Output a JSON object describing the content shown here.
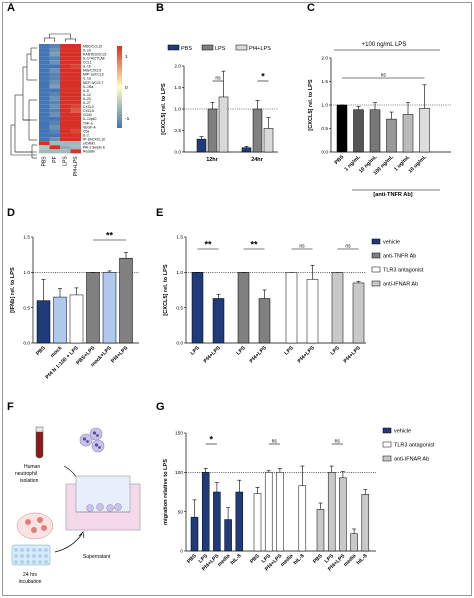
{
  "panel_letters": [
    "A",
    "B",
    "C",
    "D",
    "E",
    "F",
    "G"
  ],
  "chart_data": [
    {
      "panel": "A",
      "type": "heatmap",
      "columns": [
        "PBS",
        "PF",
        "LPS",
        "Pf4+LPS"
      ],
      "rows": [
        "MDC/CCL22",
        "IL-10",
        "RANTES/CCL5",
        "IL-17A/CTLA8",
        "CCL1",
        "IL-1b",
        "MIG/CXCL9",
        "MIP-1a/CCL3",
        "IL-1a",
        "MCP-3/CCL7",
        "IL-1Ra",
        "IL-6",
        "IL-12",
        "IL-23",
        "IL-27",
        "CXCL2",
        "CXCL5",
        "CD40",
        "IL-12p40",
        "TNF-a",
        "VEGF-A",
        "C5a",
        "IL-2",
        "IP-10/CXCL10",
        "sICAM1",
        "PAI-1 Serpin E",
        "Resistin"
      ],
      "values": [
        [
          -1.2,
          -0.9,
          1.4,
          1.1
        ],
        [
          -1.1,
          -0.8,
          1.4,
          1.0
        ],
        [
          -1.2,
          -0.7,
          1.3,
          1.1
        ],
        [
          -1.0,
          -0.9,
          1.3,
          1.0
        ],
        [
          -1.1,
          -0.8,
          1.2,
          1.1
        ],
        [
          -1.0,
          -1.0,
          1.4,
          0.9
        ],
        [
          -1.2,
          -0.8,
          1.2,
          1.2
        ],
        [
          -1.1,
          -0.9,
          1.3,
          1.0
        ],
        [
          -1.0,
          -0.9,
          1.4,
          1.0
        ],
        [
          -1.1,
          -0.8,
          1.2,
          1.1
        ],
        [
          -1.2,
          -0.7,
          1.3,
          1.0
        ],
        [
          -1.0,
          -1.0,
          1.3,
          1.1
        ],
        [
          -1.1,
          -0.9,
          1.2,
          1.0
        ],
        [
          -1.0,
          -0.8,
          1.3,
          1.1
        ],
        [
          -1.1,
          -0.9,
          1.2,
          1.0
        ],
        [
          -1.2,
          -0.8,
          1.3,
          0.9
        ],
        [
          -1.0,
          -0.9,
          1.4,
          0.8
        ],
        [
          -1.1,
          -0.8,
          1.2,
          1.0
        ],
        [
          -1.0,
          -1.0,
          1.3,
          1.1
        ],
        [
          -1.1,
          -0.9,
          1.4,
          1.0
        ],
        [
          -1.0,
          -0.8,
          1.1,
          1.0
        ],
        [
          -1.1,
          -0.9,
          1.2,
          0.9
        ],
        [
          -1.0,
          -1.0,
          1.3,
          1.1
        ],
        [
          -1.1,
          -0.8,
          1.3,
          1.0
        ],
        [
          1.5,
          -0.5,
          -0.5,
          -0.5
        ],
        [
          -0.4,
          1.5,
          -0.6,
          -0.5
        ],
        [
          -0.5,
          -0.5,
          -0.5,
          1.5
        ]
      ],
      "colorbar": {
        "min": -1,
        "max": 1,
        "ticks": [
          "1",
          "0",
          "-1"
        ],
        "colors": [
          "#4575b4",
          "#ffffbf",
          "#d73027"
        ]
      }
    },
    {
      "panel": "B",
      "type": "bar",
      "ylabel": "[CXCL5] rel. to LPS",
      "ylim": [
        0,
        2.0
      ],
      "yticks": [
        "0.0",
        "0.5",
        "1.0",
        "1.5",
        "2.0"
      ],
      "reference_line": 1.0,
      "legend": [
        {
          "label": "PBS",
          "color": "#1f3b7a"
        },
        {
          "label": "LPS",
          "color": "#808080"
        },
        {
          "label": "Pf4+LPS",
          "color": "#d9d9d9"
        }
      ],
      "groups": [
        "12hr",
        "24hr"
      ],
      "series": [
        {
          "name": "PBS",
          "color": "#1f3b7a",
          "values": [
            0.3,
            0.1
          ],
          "errors": [
            0.06,
            0.03
          ]
        },
        {
          "name": "LPS",
          "color": "#808080",
          "values": [
            1.0,
            1.0
          ],
          "errors": [
            0.15,
            0.2
          ]
        },
        {
          "name": "Pf4+LPS",
          "color": "#d9d9d9",
          "values": [
            1.28,
            0.55
          ],
          "errors": [
            0.6,
            0.25
          ]
        }
      ],
      "annotations": [
        "ns",
        "*"
      ]
    },
    {
      "panel": "C",
      "type": "bar",
      "ylabel": "[CXCL5] rel. to LPS",
      "ylim": [
        0,
        2.0
      ],
      "yticks": [
        "0.0",
        "0.5",
        "1.0",
        "1.5",
        "2.0"
      ],
      "reference_line": 1.0,
      "header": "+100 ng/mL LPS",
      "xlabel": "[anti-TNFR Ab]",
      "categories": [
        "PBS",
        "1 ng/mL",
        "10 ng/mL",
        "100 ng/mL",
        "1 ug/mL",
        "10 ug/mL"
      ],
      "values": [
        1.0,
        0.9,
        0.9,
        0.7,
        0.8,
        0.93
      ],
      "errors": [
        0.0,
        0.07,
        0.15,
        0.15,
        0.25,
        0.5
      ],
      "colors": [
        "#000000",
        "#555555",
        "#777777",
        "#999999",
        "#bbbbbb",
        "#dddddd"
      ],
      "annotations": [
        "ns"
      ]
    },
    {
      "panel": "D",
      "type": "bar",
      "ylabel": "[IFNb] rel. to LPS",
      "ylim": [
        0,
        1.5
      ],
      "yticks": [
        "0.0",
        "0.5",
        "1.0",
        "1.5"
      ],
      "reference_line": 1.0,
      "categories": [
        "PBS",
        "mock",
        "Pf4 N 1:100 + LPS",
        "PBS+LPS",
        "mock+LPS",
        "Pf4+LPS"
      ],
      "values": [
        0.6,
        0.65,
        0.68,
        1.0,
        1.0,
        1.2
      ],
      "errors": [
        0.3,
        0.12,
        0.1,
        0.0,
        0.02,
        0.08
      ],
      "colors": [
        "#1f3b7a",
        "#aec8ee",
        "#ffffff",
        "#808080",
        "#aec8ee",
        "#808080"
      ],
      "annotations": [
        "**"
      ]
    },
    {
      "panel": "E",
      "type": "bar",
      "ylabel": "[CXCL5] rel. to LPS",
      "ylim": [
        0,
        1.5
      ],
      "yticks": [
        "0.0",
        "0.5",
        "1.0",
        "1.5"
      ],
      "reference_line": 1.0,
      "legend": [
        {
          "label": "vehicle",
          "color": "#1f3b7a"
        },
        {
          "label": "anti-TNFR Ab",
          "color": "#808080"
        },
        {
          "label": "TLR3 antagonist",
          "color": "#ffffff"
        },
        {
          "label": "anti-IFNAR Ab",
          "color": "#c8c8c8"
        }
      ],
      "groups": [
        {
          "treatment": "vehicle",
          "color": "#1f3b7a",
          "categories": [
            "LPS",
            "Pf4+LPS"
          ],
          "values": [
            1.0,
            0.63
          ],
          "errors": [
            0.0,
            0.06
          ],
          "annotation": "**"
        },
        {
          "treatment": "anti-TNFR Ab",
          "color": "#808080",
          "categories": [
            "LPS",
            "Pf4+LPS"
          ],
          "values": [
            1.0,
            0.63
          ],
          "errors": [
            0.0,
            0.12
          ],
          "annotation": "**"
        },
        {
          "treatment": "TLR3 antagonist",
          "color": "#ffffff",
          "categories": [
            "LPS",
            "Pf4+LPS"
          ],
          "values": [
            1.0,
            0.9
          ],
          "errors": [
            0.0,
            0.2
          ],
          "annotation": "ns"
        },
        {
          "treatment": "anti-IFNAR Ab",
          "color": "#c8c8c8",
          "categories": [
            "LPS",
            "Pf4+LPS"
          ],
          "values": [
            1.0,
            0.85
          ],
          "errors": [
            0.0,
            0.02
          ],
          "annotation": "ns"
        }
      ]
    },
    {
      "panel": "G",
      "type": "bar",
      "ylabel": "migration relative to LPS",
      "ylim": [
        0,
        150
      ],
      "yticks": [
        "0",
        "50",
        "100",
        "150"
      ],
      "reference_line": 100,
      "legend": [
        {
          "label": "vehicle",
          "color": "#1f3b7a"
        },
        {
          "label": "TLR3 antagonist",
          "color": "#ffffff"
        },
        {
          "label": "anti-IFNAR Ab",
          "color": "#c8c8c8"
        }
      ],
      "groups": [
        {
          "treatment": "vehicle",
          "color": "#1f3b7a",
          "categories": [
            "PBS",
            "LPS",
            "Pf4+LPS",
            "media",
            "hIL-8"
          ],
          "values": [
            43,
            100,
            75,
            40,
            75
          ],
          "errors": [
            22,
            5,
            12,
            15,
            15
          ],
          "annotation": "*"
        },
        {
          "treatment": "TLR3 antagonist",
          "color": "#ffffff",
          "categories": [
            "PBS",
            "LPS",
            "Pf4+LPS",
            "media",
            "hIL-8"
          ],
          "values": [
            73,
            100,
            100,
            0,
            83
          ],
          "errors": [
            8,
            2,
            5,
            0,
            25
          ],
          "annotation": "ns"
        },
        {
          "treatment": "anti-IFNAR Ab",
          "color": "#c8c8c8",
          "categories": [
            "PBS",
            "LPS",
            "Pf4+LPS",
            "media",
            "hIL-8"
          ],
          "values": [
            53,
            100,
            93,
            22,
            72
          ],
          "errors": [
            8,
            8,
            8,
            6,
            6
          ],
          "annotation": "ns"
        }
      ]
    }
  ],
  "schematic": {
    "labels": [
      "Human neutrophil isolation",
      "24 hrs incubation",
      "Supernatant"
    ]
  }
}
